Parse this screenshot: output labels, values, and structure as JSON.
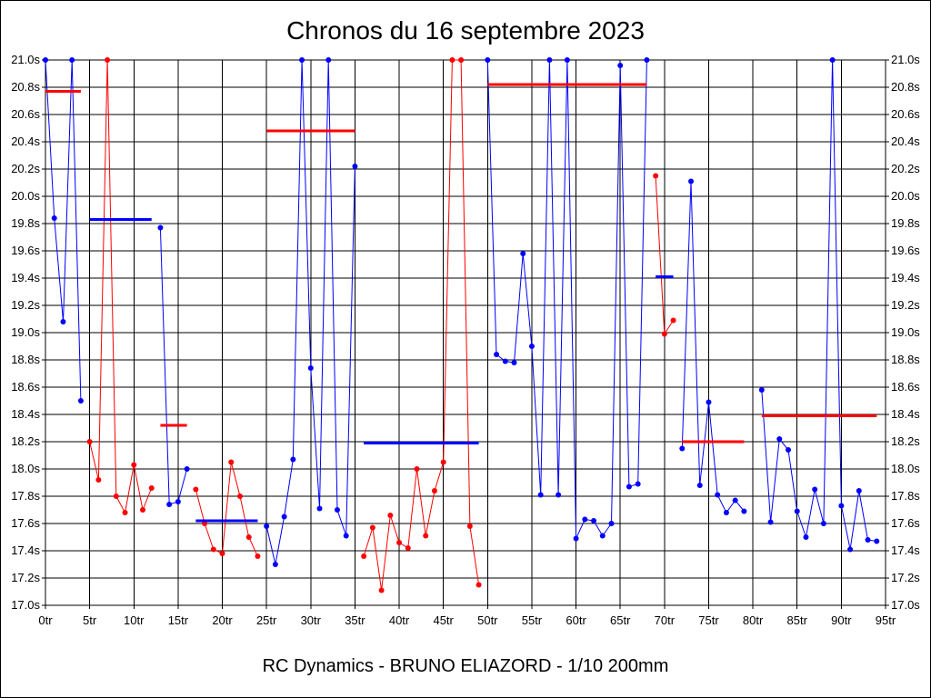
{
  "chart_data": {
    "type": "line",
    "title": "Chronos du 16 septembre 2023",
    "footer": "RC Dynamics - BRUNO ELIAZORD - 1/10 200mm",
    "xlim": [
      0,
      95
    ],
    "ylim": [
      17.0,
      21.0
    ],
    "x_ticks": [
      0,
      5,
      10,
      15,
      20,
      25,
      30,
      35,
      40,
      45,
      50,
      55,
      60,
      65,
      70,
      75,
      80,
      85,
      90,
      95
    ],
    "x_tick_labels": [
      "0tr",
      "5tr",
      "10tr",
      "15tr",
      "20tr",
      "25tr",
      "30tr",
      "35tr",
      "40tr",
      "45tr",
      "50tr",
      "55tr",
      "60tr",
      "65tr",
      "70tr",
      "75tr",
      "80tr",
      "85tr",
      "90tr",
      "95tr"
    ],
    "y_ticks": [
      17.0,
      17.2,
      17.4,
      17.6,
      17.8,
      18.0,
      18.2,
      18.4,
      18.6,
      18.8,
      19.0,
      19.2,
      19.4,
      19.6,
      19.8,
      20.0,
      20.2,
      20.4,
      20.6,
      20.8,
      21.0
    ],
    "y_tick_labels": [
      "17.0s",
      "17.2s",
      "17.4s",
      "17.6s",
      "17.8s",
      "18.0s",
      "18.2s",
      "18.4s",
      "18.6s",
      "18.8s",
      "19.0s",
      "19.2s",
      "19.4s",
      "19.6s",
      "19.8s",
      "20.0s",
      "20.2s",
      "20.4s",
      "20.6s",
      "20.8s",
      "21.0s"
    ],
    "grid": true,
    "colors": {
      "blue": "#0000ff",
      "red": "#ff0000",
      "grid": "#000000"
    },
    "series": [
      {
        "color": "blue",
        "x": [
          0,
          1,
          2,
          3,
          4
        ],
        "values": [
          21.0,
          19.84,
          19.08,
          21.0,
          18.5
        ]
      },
      {
        "color": "red",
        "x": [
          5,
          6,
          7,
          8,
          9,
          10,
          11,
          12
        ],
        "values": [
          18.2,
          17.92,
          21.0,
          17.8,
          17.68,
          18.03,
          17.7,
          17.86
        ]
      },
      {
        "color": "blue",
        "x": [
          13,
          14,
          15,
          16
        ],
        "values": [
          19.77,
          17.74,
          17.76,
          18.0
        ]
      },
      {
        "color": "red",
        "x": [
          17,
          18,
          19,
          20,
          21,
          22,
          23,
          24
        ],
        "values": [
          17.85,
          17.6,
          17.41,
          17.38,
          18.05,
          17.8,
          17.5,
          17.36
        ]
      },
      {
        "color": "blue",
        "x": [
          25,
          26,
          27,
          28,
          29,
          30,
          31,
          32,
          33,
          34,
          35
        ],
        "values": [
          17.58,
          17.3,
          17.65,
          18.07,
          21.0,
          18.74,
          17.71,
          21.0,
          17.7,
          17.51,
          20.22
        ]
      },
      {
        "color": "red",
        "x": [
          36,
          37,
          38,
          39,
          40,
          41,
          42,
          43,
          44,
          45,
          46,
          47,
          48,
          49
        ],
        "values": [
          17.36,
          17.57,
          17.11,
          17.66,
          17.46,
          17.42,
          18.0,
          17.51,
          17.84,
          18.05,
          21.0,
          21.0,
          17.58,
          17.15
        ]
      },
      {
        "color": "blue",
        "x": [
          50,
          51,
          52,
          53,
          54,
          55,
          56,
          57,
          58,
          59,
          60,
          61,
          62,
          63,
          64,
          65,
          66,
          67,
          68
        ],
        "values": [
          21.0,
          18.84,
          18.79,
          18.78,
          19.58,
          18.9,
          17.81,
          21.0,
          17.81,
          21.0,
          17.49,
          17.63,
          17.62,
          17.51,
          17.6,
          20.96,
          17.87,
          17.89,
          21.0
        ]
      },
      {
        "color": "red",
        "x": [
          69,
          70,
          71
        ],
        "values": [
          20.15,
          18.99,
          19.09
        ]
      },
      {
        "color": "blue",
        "x": [
          72,
          73,
          74,
          75,
          76,
          77,
          78,
          79
        ],
        "values": [
          18.15,
          20.11,
          17.88,
          18.49,
          17.81,
          17.68,
          17.77,
          17.69
        ]
      },
      {
        "color": "blue",
        "x": [
          81,
          82,
          83,
          84,
          85,
          86,
          87,
          88,
          89,
          90,
          91,
          92,
          93,
          94
        ],
        "values": [
          18.58,
          17.61,
          18.22,
          18.14,
          17.69,
          17.5,
          17.85,
          17.6,
          21.0,
          17.73,
          17.41,
          17.84,
          17.48,
          17.47
        ]
      }
    ],
    "averages": [
      {
        "color": "red",
        "x_start": 0,
        "x_end": 4,
        "value": 20.77
      },
      {
        "color": "blue",
        "x_start": 5,
        "x_end": 12,
        "value": 19.83
      },
      {
        "color": "red",
        "x_start": 13,
        "x_end": 16,
        "value": 18.32
      },
      {
        "color": "blue",
        "x_start": 17,
        "x_end": 24,
        "value": 17.62
      },
      {
        "color": "red",
        "x_start": 25,
        "x_end": 35,
        "value": 20.48
      },
      {
        "color": "blue",
        "x_start": 36,
        "x_end": 49,
        "value": 18.19
      },
      {
        "color": "red",
        "x_start": 50,
        "x_end": 68,
        "value": 20.82
      },
      {
        "color": "blue",
        "x_start": 69,
        "x_end": 71,
        "value": 19.41
      },
      {
        "color": "red",
        "x_start": 72,
        "x_end": 79,
        "value": 18.2
      },
      {
        "color": "red",
        "x_start": 81,
        "x_end": 94,
        "value": 18.39
      }
    ]
  }
}
